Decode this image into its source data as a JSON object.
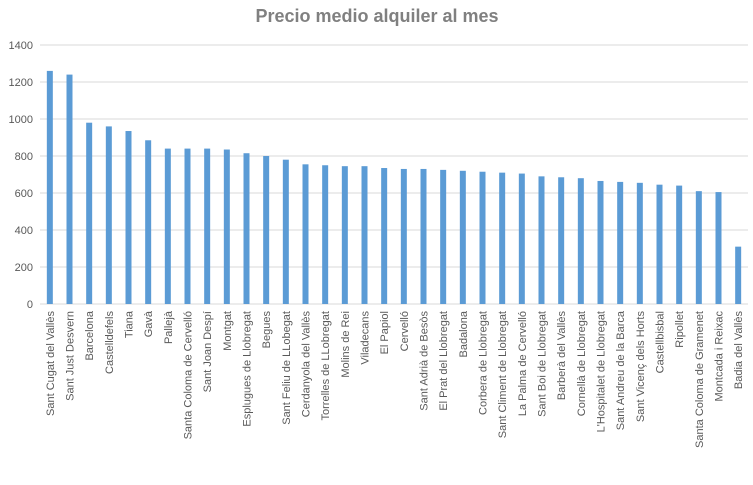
{
  "chart_data": {
    "type": "bar",
    "title": "Precio medio alquiler al mes",
    "xlabel": "",
    "ylabel": "",
    "ylim": [
      0,
      1400
    ],
    "yticks": [
      0,
      200,
      400,
      600,
      800,
      1000,
      1200,
      1400
    ],
    "grid": true,
    "legend": "none",
    "bar_color": "#5b9bd5",
    "categories": [
      "Sant Cugat del Vallès",
      "Sant Just Desvern",
      "Barcelona",
      "Castelldefels",
      "Tiana",
      "Gavà",
      "Pallejà",
      "Santa Coloma de Cervelló",
      "Sant Joan Despí",
      "Montgat",
      "Esplugues de Llobregat",
      "Begues",
      "Sant Feliu de LLobegat",
      "Cerdanyola del Vallès",
      "Torrelles de LLobregat",
      "Molins de Rei",
      "Viladecans",
      "El Papiol",
      "Cervelló",
      "Sant Adrià de Besòs",
      "El Prat del Llobregat",
      "Badalona",
      "Corbera de Llobregat",
      "Sant Climent de Llobregat",
      "La Palma de Cervelló",
      "Sant Boi de Llobregat",
      "Barberà del Vallès",
      "Cornellà de Llobregat",
      "L'Hospitalet de Llobregat",
      "Sant Andreu de la Barca",
      "Sant Vicenç dels Horts",
      "Castellbisbal",
      "Ripollet",
      "Santa Coloma de Gramenet",
      "Montcada i Reixac",
      "Badia del Vallès"
    ],
    "values": [
      1260,
      1240,
      980,
      960,
      935,
      885,
      840,
      840,
      840,
      835,
      815,
      800,
      780,
      755,
      750,
      745,
      745,
      735,
      730,
      730,
      725,
      720,
      715,
      710,
      705,
      690,
      685,
      680,
      665,
      660,
      655,
      645,
      640,
      610,
      605,
      310
    ]
  }
}
